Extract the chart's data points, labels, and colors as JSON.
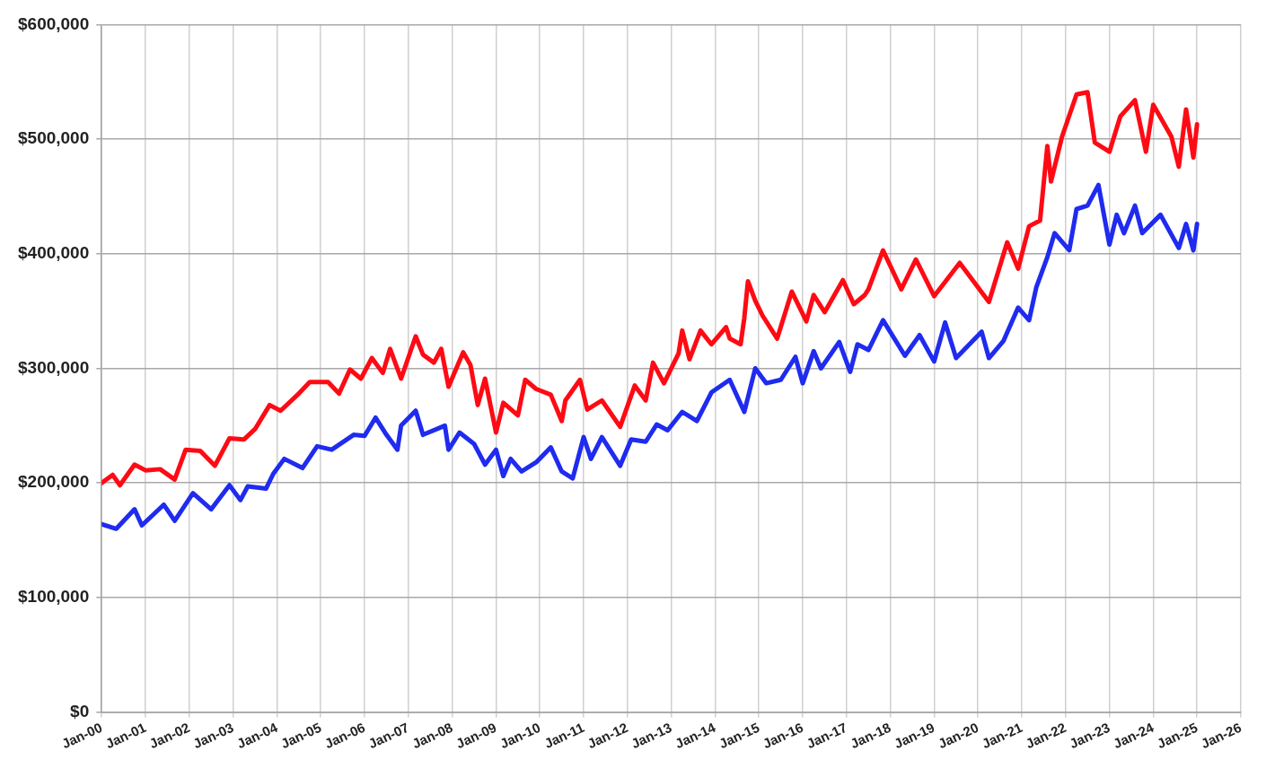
{
  "chart_data": {
    "type": "line",
    "xlim": [
      "2000-01",
      "2026-01"
    ],
    "ylim": [
      0,
      600000
    ],
    "xticks": [
      {
        "value": "2000-01",
        "label": "Jan-00"
      },
      {
        "value": "2001-01",
        "label": "Jan-01"
      },
      {
        "value": "2002-01",
        "label": "Jan-02"
      },
      {
        "value": "2003-01",
        "label": "Jan-03"
      },
      {
        "value": "2004-01",
        "label": "Jan-04"
      },
      {
        "value": "2005-01",
        "label": "Jan-05"
      },
      {
        "value": "2006-01",
        "label": "Jan-06"
      },
      {
        "value": "2007-01",
        "label": "Jan-07"
      },
      {
        "value": "2008-01",
        "label": "Jan-08"
      },
      {
        "value": "2009-01",
        "label": "Jan-09"
      },
      {
        "value": "2010-01",
        "label": "Jan-10"
      },
      {
        "value": "2011-01",
        "label": "Jan-11"
      },
      {
        "value": "2012-01",
        "label": "Jan-12"
      },
      {
        "value": "2013-01",
        "label": "Jan-13"
      },
      {
        "value": "2014-01",
        "label": "Jan-14"
      },
      {
        "value": "2015-01",
        "label": "Jan-15"
      },
      {
        "value": "2016-01",
        "label": "Jan-16"
      },
      {
        "value": "2017-01",
        "label": "Jan-17"
      },
      {
        "value": "2018-01",
        "label": "Jan-18"
      },
      {
        "value": "2019-01",
        "label": "Jan-19"
      },
      {
        "value": "2020-01",
        "label": "Jan-20"
      },
      {
        "value": "2021-01",
        "label": "Jan-21"
      },
      {
        "value": "2022-01",
        "label": "Jan-22"
      },
      {
        "value": "2023-01",
        "label": "Jan-23"
      },
      {
        "value": "2024-01",
        "label": "Jan-24"
      },
      {
        "value": "2025-01",
        "label": "Jan-25"
      },
      {
        "value": "2026-01",
        "label": "Jan-26"
      }
    ],
    "yticks": [
      {
        "value": 0,
        "label": "$0"
      },
      {
        "value": 100000,
        "label": "$100,000"
      },
      {
        "value": 200000,
        "label": "$200,000"
      },
      {
        "value": 300000,
        "label": "$300,000"
      },
      {
        "value": 400000,
        "label": "$400,000"
      },
      {
        "value": 500000,
        "label": "$500,000"
      },
      {
        "value": 600000,
        "label": "$600,000"
      }
    ],
    "grid": true,
    "legend": false,
    "marker": "none",
    "line_style": "solid",
    "series": [
      {
        "color": "#ff0a14",
        "x": [
          "2000-01",
          "2000-04",
          "2000-06",
          "2000-10",
          "2001-01",
          "2001-05",
          "2001-09",
          "2001-12",
          "2002-04",
          "2002-08",
          "2002-12",
          "2003-04",
          "2003-07",
          "2003-11",
          "2004-02",
          "2004-07",
          "2004-10",
          "2005-03",
          "2005-06",
          "2005-09",
          "2005-12",
          "2006-03",
          "2006-06",
          "2006-08",
          "2006-11",
          "2007-03",
          "2007-05",
          "2007-08",
          "2007-10",
          "2007-12",
          "2008-04",
          "2008-06",
          "2008-08",
          "2008-10",
          "2009-01",
          "2009-03",
          "2009-07",
          "2009-09",
          "2009-12",
          "2010-04",
          "2010-07",
          "2010-08",
          "2010-12",
          "2011-02",
          "2011-06",
          "2011-11",
          "2012-03",
          "2012-06",
          "2012-08",
          "2012-11",
          "2013-03",
          "2013-04",
          "2013-06",
          "2013-09",
          "2013-12",
          "2014-04",
          "2014-05",
          "2014-08",
          "2014-09",
          "2014-10",
          "2014-12",
          "2015-02",
          "2015-06",
          "2015-10",
          "2016-02",
          "2016-04",
          "2016-07",
          "2016-12",
          "2017-03",
          "2017-06",
          "2017-07",
          "2017-11",
          "2018-04",
          "2018-08",
          "2019-01",
          "2019-08",
          "2020-04",
          "2020-09",
          "2020-12",
          "2021-03",
          "2021-06",
          "2021-08",
          "2021-09",
          "2021-12",
          "2022-04",
          "2022-07",
          "2022-09",
          "2023-01",
          "2023-04",
          "2023-08",
          "2023-11",
          "2024-01",
          "2024-06",
          "2024-08",
          "2024-10",
          "2024-12",
          "2025-01"
        ],
        "values": [
          200000,
          207000,
          198000,
          216000,
          211000,
          212000,
          203000,
          229000,
          228000,
          215000,
          239000,
          238000,
          247000,
          268000,
          263000,
          278000,
          288000,
          288000,
          278000,
          299000,
          291000,
          309000,
          296000,
          317000,
          291000,
          328000,
          312000,
          305000,
          317000,
          284000,
          314000,
          303000,
          268000,
          291000,
          244000,
          270000,
          259000,
          290000,
          282000,
          277000,
          254000,
          272000,
          290000,
          264000,
          272000,
          249000,
          285000,
          272000,
          305000,
          287000,
          313000,
          333000,
          308000,
          333000,
          321000,
          336000,
          326000,
          321000,
          344000,
          376000,
          359000,
          346000,
          326000,
          367000,
          341000,
          364000,
          349000,
          377000,
          356000,
          364000,
          369000,
          403000,
          369000,
          395000,
          363000,
          392000,
          358000,
          410000,
          387000,
          424000,
          429000,
          494000,
          463000,
          502000,
          539000,
          541000,
          497000,
          489000,
          520000,
          534000,
          489000,
          530000,
          502000,
          476000,
          526000,
          484000,
          513000
        ]
      },
      {
        "color": "#1f2bef",
        "x": [
          "2000-01",
          "2000-05",
          "2000-10",
          "2000-12",
          "2001-06",
          "2001-09",
          "2002-02",
          "2002-07",
          "2002-12",
          "2003-03",
          "2003-05",
          "2003-10",
          "2003-12",
          "2004-03",
          "2004-08",
          "2004-12",
          "2005-04",
          "2005-10",
          "2006-01",
          "2006-04",
          "2006-07",
          "2006-10",
          "2006-11",
          "2007-03",
          "2007-05",
          "2007-11",
          "2007-12",
          "2008-03",
          "2008-07",
          "2008-10",
          "2009-01",
          "2009-03",
          "2009-05",
          "2009-08",
          "2009-12",
          "2010-04",
          "2010-07",
          "2010-10",
          "2011-01",
          "2011-03",
          "2011-06",
          "2011-11",
          "2012-02",
          "2012-06",
          "2012-09",
          "2012-12",
          "2013-04",
          "2013-08",
          "2013-12",
          "2014-05",
          "2014-09",
          "2014-12",
          "2015-03",
          "2015-07",
          "2015-11",
          "2016-01",
          "2016-04",
          "2016-06",
          "2016-11",
          "2017-02",
          "2017-04",
          "2017-07",
          "2017-11",
          "2018-05",
          "2018-09",
          "2019-01",
          "2019-04",
          "2019-07",
          "2020-02",
          "2020-04",
          "2020-08",
          "2020-12",
          "2021-03",
          "2021-05",
          "2021-08",
          "2021-10",
          "2022-02",
          "2022-04",
          "2022-07",
          "2022-10",
          "2023-01",
          "2023-03",
          "2023-05",
          "2023-08",
          "2023-10",
          "2024-03",
          "2024-08",
          "2024-10",
          "2024-12",
          "2025-01"
        ],
        "values": [
          164000,
          160000,
          177000,
          163000,
          181000,
          167000,
          191000,
          177000,
          198000,
          185000,
          197000,
          195000,
          208000,
          221000,
          213000,
          232000,
          229000,
          242000,
          241000,
          257000,
          242000,
          229000,
          250000,
          263000,
          242000,
          250000,
          229000,
          244000,
          234000,
          216000,
          229000,
          206000,
          221000,
          210000,
          218000,
          231000,
          210000,
          204000,
          240000,
          221000,
          240000,
          215000,
          238000,
          236000,
          251000,
          246000,
          262000,
          254000,
          279000,
          290000,
          262000,
          300000,
          287000,
          290000,
          310000,
          287000,
          315000,
          300000,
          323000,
          297000,
          321000,
          316000,
          342000,
          311000,
          329000,
          306000,
          340000,
          309000,
          332000,
          309000,
          324000,
          353000,
          342000,
          371000,
          397000,
          418000,
          403000,
          439000,
          442000,
          460000,
          408000,
          434000,
          418000,
          442000,
          418000,
          434000,
          405000,
          426000,
          403000,
          426000
        ]
      }
    ]
  }
}
